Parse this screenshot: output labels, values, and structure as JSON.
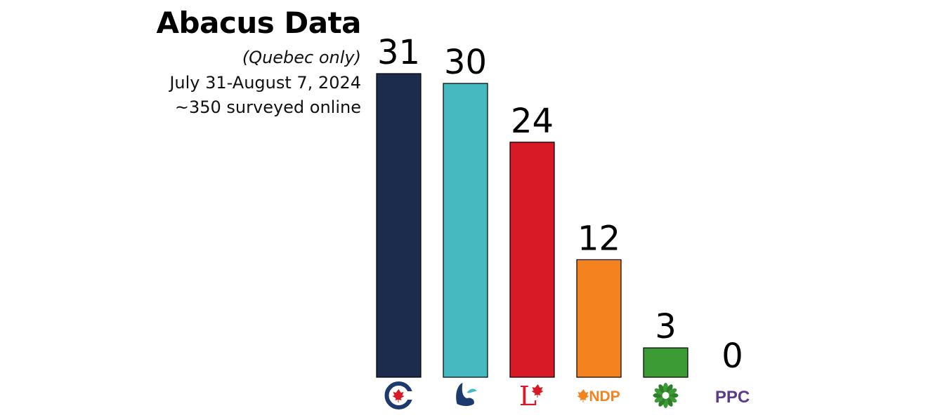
{
  "header": {
    "title": "Abacus Data",
    "region": "(Quebec only)",
    "dates": "July 31-August 7, 2024",
    "sample": "~350 surveyed online"
  },
  "chart_data": {
    "type": "bar",
    "title": "Abacus Data",
    "subtitle": "(Quebec only)",
    "xlabel": "",
    "ylabel": "",
    "categories": [
      "CPC",
      "BQ",
      "LPC",
      "NDP",
      "GPC",
      "PPC"
    ],
    "values": [
      31,
      30,
      24,
      12,
      3,
      0
    ],
    "ylim": [
      0,
      31
    ],
    "grid": false,
    "colors": [
      "#1c2c4d",
      "#45b8c0",
      "#d71a26",
      "#f4831f",
      "#3d9b35",
      "#5b3b8c"
    ],
    "logos": [
      {
        "name": "cpc-logo-icon",
        "label": ""
      },
      {
        "name": "bq-logo-icon",
        "label": ""
      },
      {
        "name": "lpc-logo-icon",
        "label": "L"
      },
      {
        "name": "ndp-logo-icon",
        "label": "NDP"
      },
      {
        "name": "gpc-logo-icon",
        "label": ""
      },
      {
        "name": "ppc-logo-icon",
        "label": "PPC"
      }
    ]
  }
}
